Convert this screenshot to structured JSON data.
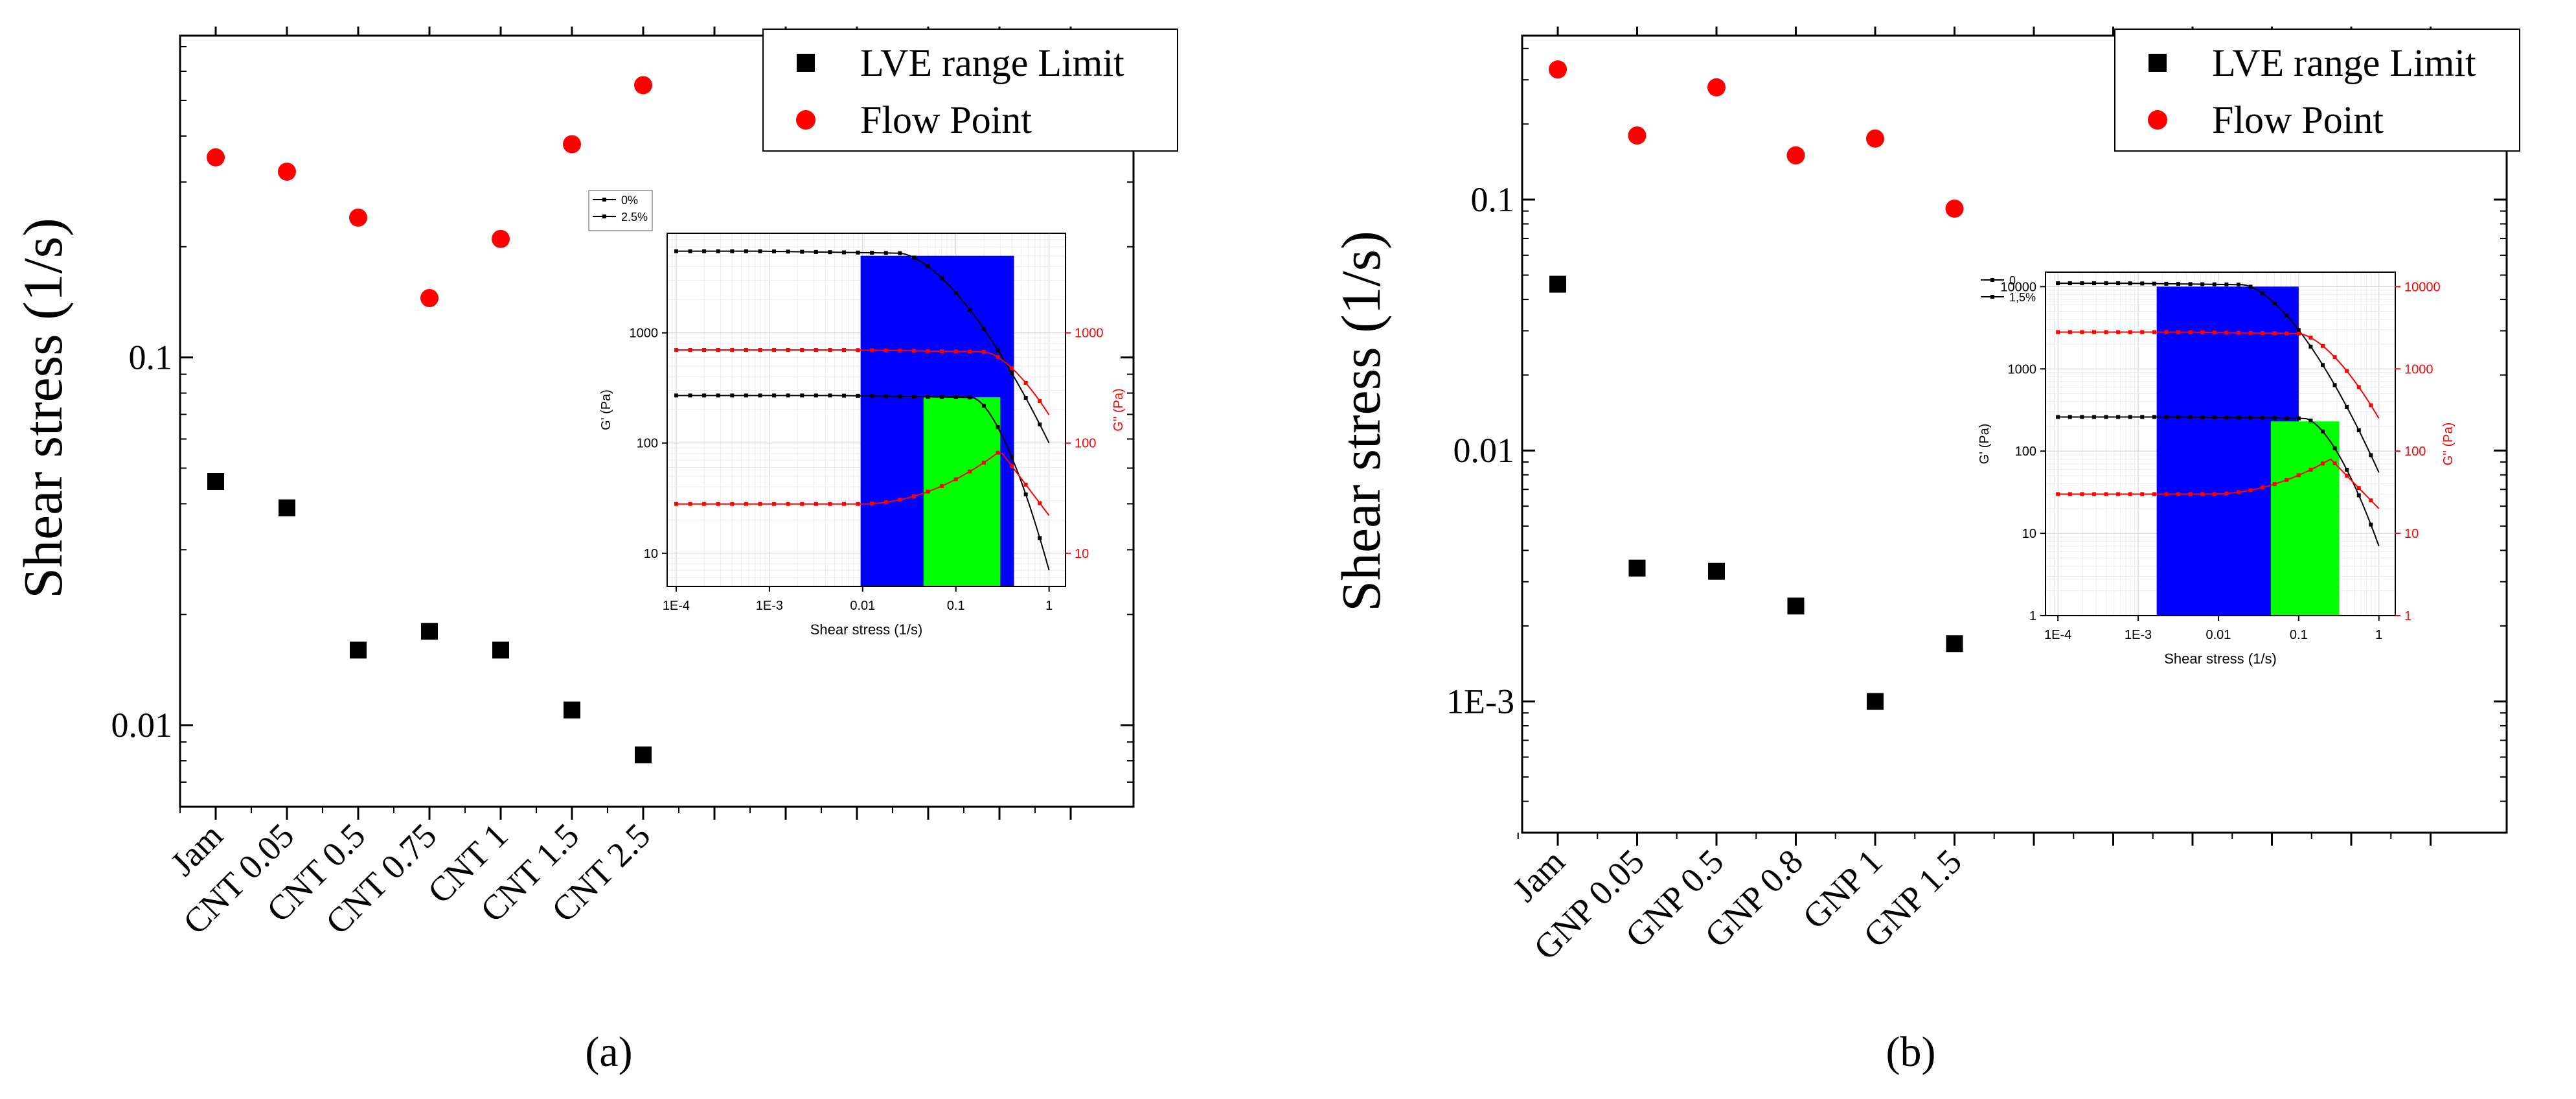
{
  "figure": {
    "panels": [
      {
        "panel_label": "a",
        "main": {
          "type": "scatter",
          "ylabel": "Shear stress (1/s)",
          "yscale": "log",
          "ylim": [
            0.006,
            0.75
          ],
          "yticks": [
            0.01,
            0.1
          ],
          "ytick_labels": [
            "0.01",
            "0.1"
          ],
          "categories": [
            "Jam",
            "CNT 0.05",
            "CNT 0.5",
            "CNT 0.75",
            "CNT 1",
            "CNT 1.5",
            "CNT 2.5"
          ],
          "series": [
            {
              "name": "LVE range Limit",
              "marker": "square",
              "color": "#000000",
              "values": [
                0.046,
                0.039,
                0.016,
                0.018,
                0.016,
                0.011,
                0.0083
              ]
            },
            {
              "name": "Flow Point",
              "marker": "circle",
              "color": "#ff0000",
              "values": [
                0.35,
                0.32,
                0.24,
                0.145,
                0.21,
                0.38,
                0.55
              ]
            }
          ]
        },
        "inset": {
          "type": "line",
          "xlabel": "Shear stress (1/s)",
          "ylabel_left": "G' (Pa)",
          "ylabel_right": "G'' (Pa)",
          "xscale": "log",
          "xlim": [
            8e-05,
            1.5
          ],
          "xticks": [
            0.0001,
            0.001,
            0.01,
            0.1,
            1
          ],
          "xtick_labels": [
            "1E-4",
            "1E-3",
            "0.01",
            "0.1",
            "1"
          ],
          "ylim_left": [
            5,
            8000
          ],
          "yticks_left": [
            10,
            100,
            1000
          ],
          "ytick_labels_left": [
            "10",
            "100",
            "1000"
          ],
          "ylim_right": [
            5,
            8000
          ],
          "yticks_right": [
            10,
            100,
            1000
          ],
          "ytick_labels_right": [
            "10",
            "100",
            "1000"
          ],
          "legend": [
            "0%",
            "2.5%"
          ],
          "shaded_regions": [
            {
              "color": "#0000ff",
              "x": [
                0.0095,
                0.42
              ],
              "y": [
                5,
                5000
              ]
            },
            {
              "color": "#00ff00",
              "x": [
                0.045,
                0.3
              ],
              "y": [
                5,
                260
              ]
            }
          ],
          "curves": [
            {
              "name": "G' 2.5%",
              "axis": "left",
              "color": "#000000",
              "plateau": 5500,
              "knee": 0.025,
              "drop_to": 100,
              "x_end": 1
            },
            {
              "name": "G' 0%",
              "axis": "left",
              "color": "#000000",
              "plateau": 270,
              "knee": 0.15,
              "drop_to": 7,
              "x_end": 1
            },
            {
              "name": "G'' 2.5%",
              "axis": "right",
              "color": "#ff0000",
              "plateau": 700,
              "knee": 0.2,
              "drop_to": 180,
              "x_end": 1
            },
            {
              "name": "G'' 0%",
              "axis": "right",
              "color": "#ff0000",
              "plateau": 28,
              "peak": 85,
              "peak_x": 0.3,
              "drop_to": 22,
              "x_end": 1
            }
          ]
        }
      },
      {
        "panel_label": "b",
        "main": {
          "type": "scatter",
          "ylabel": "Shear stress (1/s)",
          "yscale": "log",
          "ylim": [
            0.0003,
            0.45
          ],
          "yticks": [
            0.001,
            0.01,
            0.1
          ],
          "ytick_labels": [
            "1E-3",
            "0.01",
            "0.1"
          ],
          "categories": [
            "Jam",
            "GNP 0.05",
            "GNP 0.5",
            "GNP 0.8",
            "GNP 1",
            "GNP 1.5"
          ],
          "series": [
            {
              "name": "LVE range Limit",
              "marker": "square",
              "color": "#000000",
              "values": [
                0.046,
                0.0034,
                0.0033,
                0.0024,
                0.001,
                0.0017
              ]
            },
            {
              "name": "Flow Point",
              "marker": "circle",
              "color": "#ff0000",
              "values": [
                0.33,
                0.18,
                0.28,
                0.15,
                0.175,
                0.092
              ]
            }
          ]
        },
        "inset": {
          "type": "line",
          "xlabel": "Shear stress (1/s)",
          "ylabel_left": "G' (Pa)",
          "ylabel_right": "G'' (Pa)",
          "xscale": "log",
          "xlim": [
            7e-05,
            1.6
          ],
          "xticks": [
            0.0001,
            0.001,
            0.01,
            0.1,
            1
          ],
          "xtick_labels": [
            "1E-4",
            "1E-3",
            "0.01",
            "0.1",
            "1"
          ],
          "ylim_left": [
            1,
            15000
          ],
          "yticks_left": [
            1,
            10,
            100,
            1000,
            10000
          ],
          "ytick_labels_left": [
            "1",
            "10",
            "100",
            "1000",
            "10000"
          ],
          "ylim_right": [
            1,
            15000
          ],
          "yticks_right": [
            1,
            10,
            100,
            1000,
            10000
          ],
          "ytick_labels_right": [
            "1",
            "10",
            "100",
            "1000",
            "10000"
          ],
          "legend": [
            "0",
            "1,5%"
          ],
          "shaded_regions": [
            {
              "color": "#0000ff",
              "x": [
                0.0017,
                0.1
              ],
              "y": [
                1,
                10000
              ]
            },
            {
              "color": "#00ff00",
              "x": [
                0.045,
                0.32
              ],
              "y": [
                1,
                230
              ]
            }
          ],
          "curves": [
            {
              "name": "G' 1,5%",
              "axis": "left",
              "color": "#000000",
              "plateau": 11000,
              "knee": 0.02,
              "drop_to": 55,
              "x_end": 1
            },
            {
              "name": "G' 0",
              "axis": "left",
              "color": "#000000",
              "plateau": 260,
              "knee": 0.12,
              "drop_to": 7,
              "x_end": 1
            },
            {
              "name": "G'' 1,5%",
              "axis": "right",
              "color": "#ff0000",
              "plateau": 2800,
              "knee": 0.1,
              "drop_to": 250,
              "x_end": 1
            },
            {
              "name": "G'' 0",
              "axis": "right",
              "color": "#ff0000",
              "plateau": 30,
              "peak": 80,
              "peak_x": 0.25,
              "drop_to": 20,
              "x_end": 1
            }
          ]
        }
      }
    ]
  },
  "chart_data": [
    {
      "type": "scatter",
      "title": "(a)",
      "xlabel": "",
      "ylabel": "Shear stress (1/s)",
      "categories": [
        "Jam",
        "CNT 0.05",
        "CNT 0.5",
        "CNT 0.75",
        "CNT 1",
        "CNT 1.5",
        "CNT 2.5"
      ],
      "series": [
        {
          "name": "LVE range Limit",
          "values": [
            0.046,
            0.039,
            0.016,
            0.018,
            0.016,
            0.011,
            0.0083
          ]
        },
        {
          "name": "Flow Point",
          "values": [
            0.35,
            0.32,
            0.24,
            0.145,
            0.21,
            0.38,
            0.55
          ]
        }
      ],
      "ylim": [
        0.006,
        0.75
      ]
    },
    {
      "type": "scatter",
      "title": "(b)",
      "xlabel": "",
      "ylabel": "Shear stress (1/s)",
      "categories": [
        "Jam",
        "GNP 0.05",
        "GNP 0.5",
        "GNP 0.8",
        "GNP 1",
        "GNP 1.5"
      ],
      "series": [
        {
          "name": "LVE range Limit",
          "values": [
            0.046,
            0.0034,
            0.0033,
            0.0024,
            0.001,
            0.0017
          ]
        },
        {
          "name": "Flow Point",
          "values": [
            0.33,
            0.18,
            0.28,
            0.15,
            0.175,
            0.092
          ]
        }
      ],
      "ylim": [
        0.0003,
        0.45
      ]
    }
  ]
}
